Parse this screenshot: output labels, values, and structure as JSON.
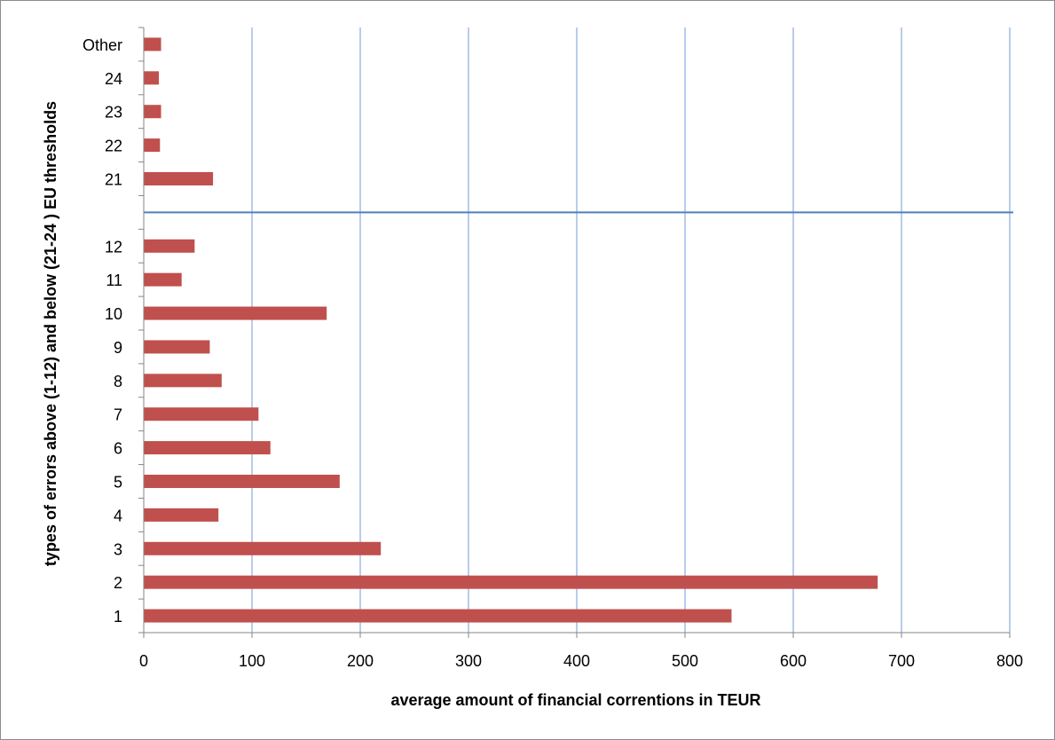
{
  "chart_data": {
    "type": "bar",
    "orientation": "horizontal",
    "categories": [
      "1",
      "2",
      "3",
      "4",
      "5",
      "6",
      "7",
      "8",
      "9",
      "10",
      "11",
      "12",
      "",
      "21",
      "22",
      "23",
      "24",
      "Other"
    ],
    "values": [
      543,
      678,
      219,
      69,
      181,
      117,
      106,
      72,
      61,
      169,
      35,
      47,
      null,
      64,
      15,
      16,
      14,
      16
    ],
    "xlabel": "average amount of financial correntions in TEUR",
    "ylabel": "types of errors above (1-12) and below (21-24 ) EU thresholds",
    "xlim": [
      0,
      800
    ],
    "xticks": [
      0,
      100,
      200,
      300,
      400,
      500,
      600,
      700,
      800
    ],
    "grid": "vertical",
    "legend": "none",
    "separator_after_category": "12",
    "colors": {
      "bar": "#c0504d",
      "grid": "#b9cdea",
      "separator": "#4f81bd",
      "axis": "#868686"
    }
  }
}
